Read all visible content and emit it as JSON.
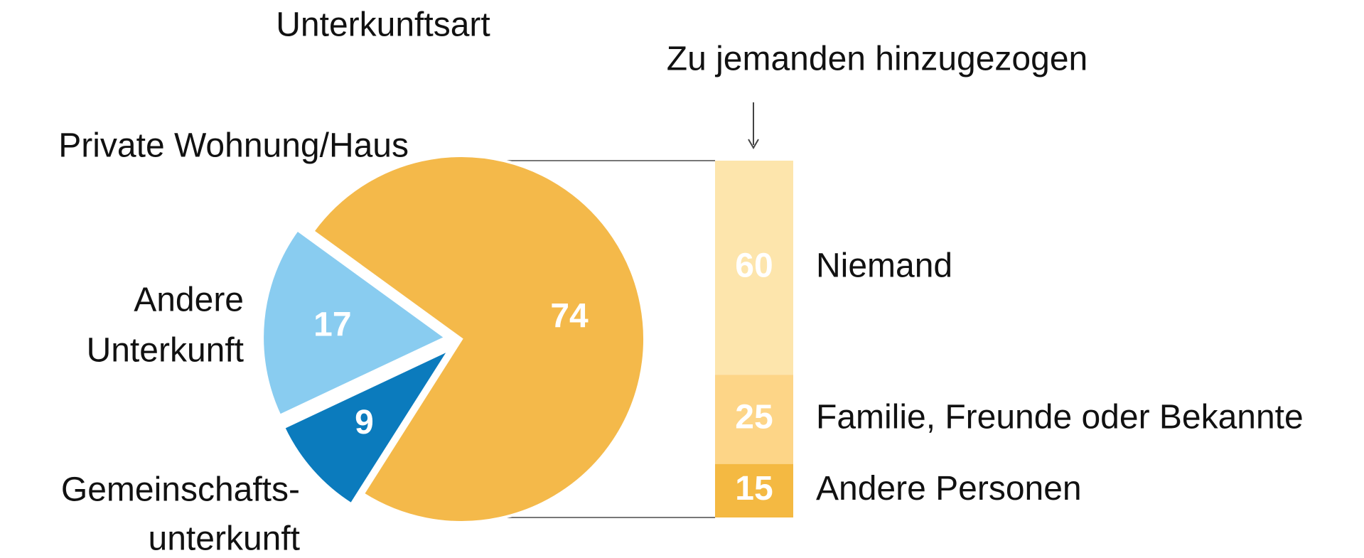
{
  "chart_data": [
    {
      "type": "pie",
      "title": "Unterkunftsart",
      "categories": [
        [
          "Private Wohnung/Haus"
        ],
        [
          "Gemeinschafts-",
          "unterkunft"
        ],
        [
          "Andere",
          "Unterkunft"
        ]
      ],
      "values": [
        74,
        9,
        17
      ],
      "colors": [
        "#f4b94a",
        "#0b7bbd",
        "#89ccf0"
      ]
    },
    {
      "type": "stacked-bar",
      "title": "Zu jemanden hinzugezogen",
      "categories": [
        "Niemand",
        "Familie, Freunde oder Bekannte",
        "Andere Personen"
      ],
      "values": [
        60,
        25,
        15
      ],
      "colors": [
        "#fde5ac",
        "#fdd587",
        "#f4b942"
      ]
    }
  ]
}
